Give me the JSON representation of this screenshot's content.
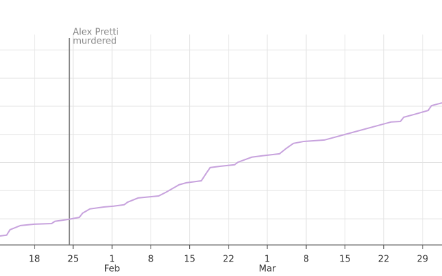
{
  "chart_data": {
    "type": "line",
    "x": [
      11.8,
      13.0,
      13.6,
      15.5,
      18.0,
      21.1,
      21.7,
      24.2,
      26.1,
      26.7,
      28.0,
      30.5,
      32.3,
      34.2,
      34.8,
      36.7,
      40.4,
      41.7,
      44.1,
      45.4,
      48.1,
      49.1,
      49.7,
      51.6,
      54.1,
      54.7,
      57.2,
      59.1,
      62.2,
      63.4,
      64.7,
      66.6,
      70.3,
      82.3,
      84.0,
      84.6,
      86.5,
      89.0,
      89.6,
      91.5
    ],
    "series": [
      {
        "color": "#c7a2dd",
        "values": [
          0.39,
          0.42,
          0.61,
          0.76,
          0.81,
          0.83,
          0.91,
          0.98,
          1.05,
          1.2,
          1.35,
          1.42,
          1.45,
          1.5,
          1.59,
          1.74,
          1.81,
          1.94,
          2.21,
          2.28,
          2.35,
          2.65,
          2.82,
          2.87,
          2.92,
          3.01,
          3.19,
          3.24,
          3.31,
          3.5,
          3.68,
          3.75,
          3.8,
          4.44,
          4.46,
          4.61,
          4.71,
          4.85,
          5.02,
          5.12
        ]
      }
    ],
    "xlim": [
      11.8,
      91.5
    ],
    "xticks": [
      18,
      25,
      {
        "value": 32,
        "label": "1"
      },
      {
        "value": 39,
        "label": "8"
      },
      {
        "value": 46,
        "label": "15"
      },
      {
        "value": 53,
        "label": "22"
      },
      {
        "value": 60,
        "label": "1"
      },
      {
        "value": 67,
        "label": "8"
      },
      {
        "value": 74,
        "label": "15"
      },
      {
        "value": 81,
        "label": "22"
      },
      {
        "value": 88,
        "label": "29"
      }
    ],
    "month_labels": [
      {
        "value": 32,
        "label": "Feb"
      },
      {
        "value": 60,
        "label": "Mar"
      }
    ],
    "ylim": [
      0.07,
      7.55
    ],
    "yticks": [
      1,
      2,
      3,
      4,
      5,
      6,
      7
    ],
    "grid": true,
    "annotation": {
      "x": 24.3,
      "lines": [
        "Alex Pretti",
        "murdered"
      ]
    }
  }
}
